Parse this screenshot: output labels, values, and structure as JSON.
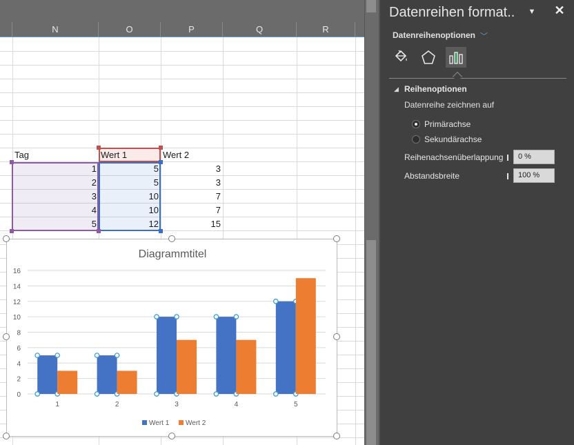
{
  "sheet": {
    "columns": [
      "N",
      "O",
      "P",
      "Q",
      "R"
    ],
    "headers": {
      "tag": "Tag",
      "wert1": "Wert 1",
      "wert2": "Wert 2"
    },
    "rows": [
      {
        "tag": "1",
        "wert1": "5",
        "wert2": "3"
      },
      {
        "tag": "2",
        "wert1": "5",
        "wert2": "3"
      },
      {
        "tag": "3",
        "wert1": "10",
        "wert2": "7"
      },
      {
        "tag": "4",
        "wert1": "10",
        "wert2": "7"
      },
      {
        "tag": "5",
        "wert1": "12",
        "wert2": "15"
      }
    ]
  },
  "chart_data": {
    "type": "bar",
    "title": "Diagrammtitel",
    "categories": [
      "1",
      "2",
      "3",
      "4",
      "5"
    ],
    "series": [
      {
        "name": "Wert 1",
        "values": [
          5,
          5,
          10,
          10,
          12
        ],
        "color": "#4472c4"
      },
      {
        "name": "Wert 2",
        "values": [
          3,
          3,
          7,
          7,
          15
        ],
        "color": "#ed7d31"
      }
    ],
    "ylim": [
      0,
      16
    ],
    "yticks": [
      0,
      2,
      4,
      6,
      8,
      10,
      12,
      14,
      16
    ],
    "grid": true,
    "legend": "bottom",
    "selected_series": "Wert 1"
  },
  "pane": {
    "title": "Datenreihen format..",
    "subtitle": "Datenreihenoptionen",
    "icons": [
      "fill-bucket-icon",
      "pentagon-icon",
      "bar-chart-icon"
    ],
    "section_title": "Reihenoptionen",
    "plot_on_label": "Datenreihe zeichnen auf",
    "radio_primary": "Primärachse",
    "radio_secondary": "Sekundärachse",
    "overlap_label": "Reihenachsenüberlappung",
    "overlap_value": "0 %",
    "gap_label": "Abstandsbreite",
    "gap_value": "100 %"
  }
}
